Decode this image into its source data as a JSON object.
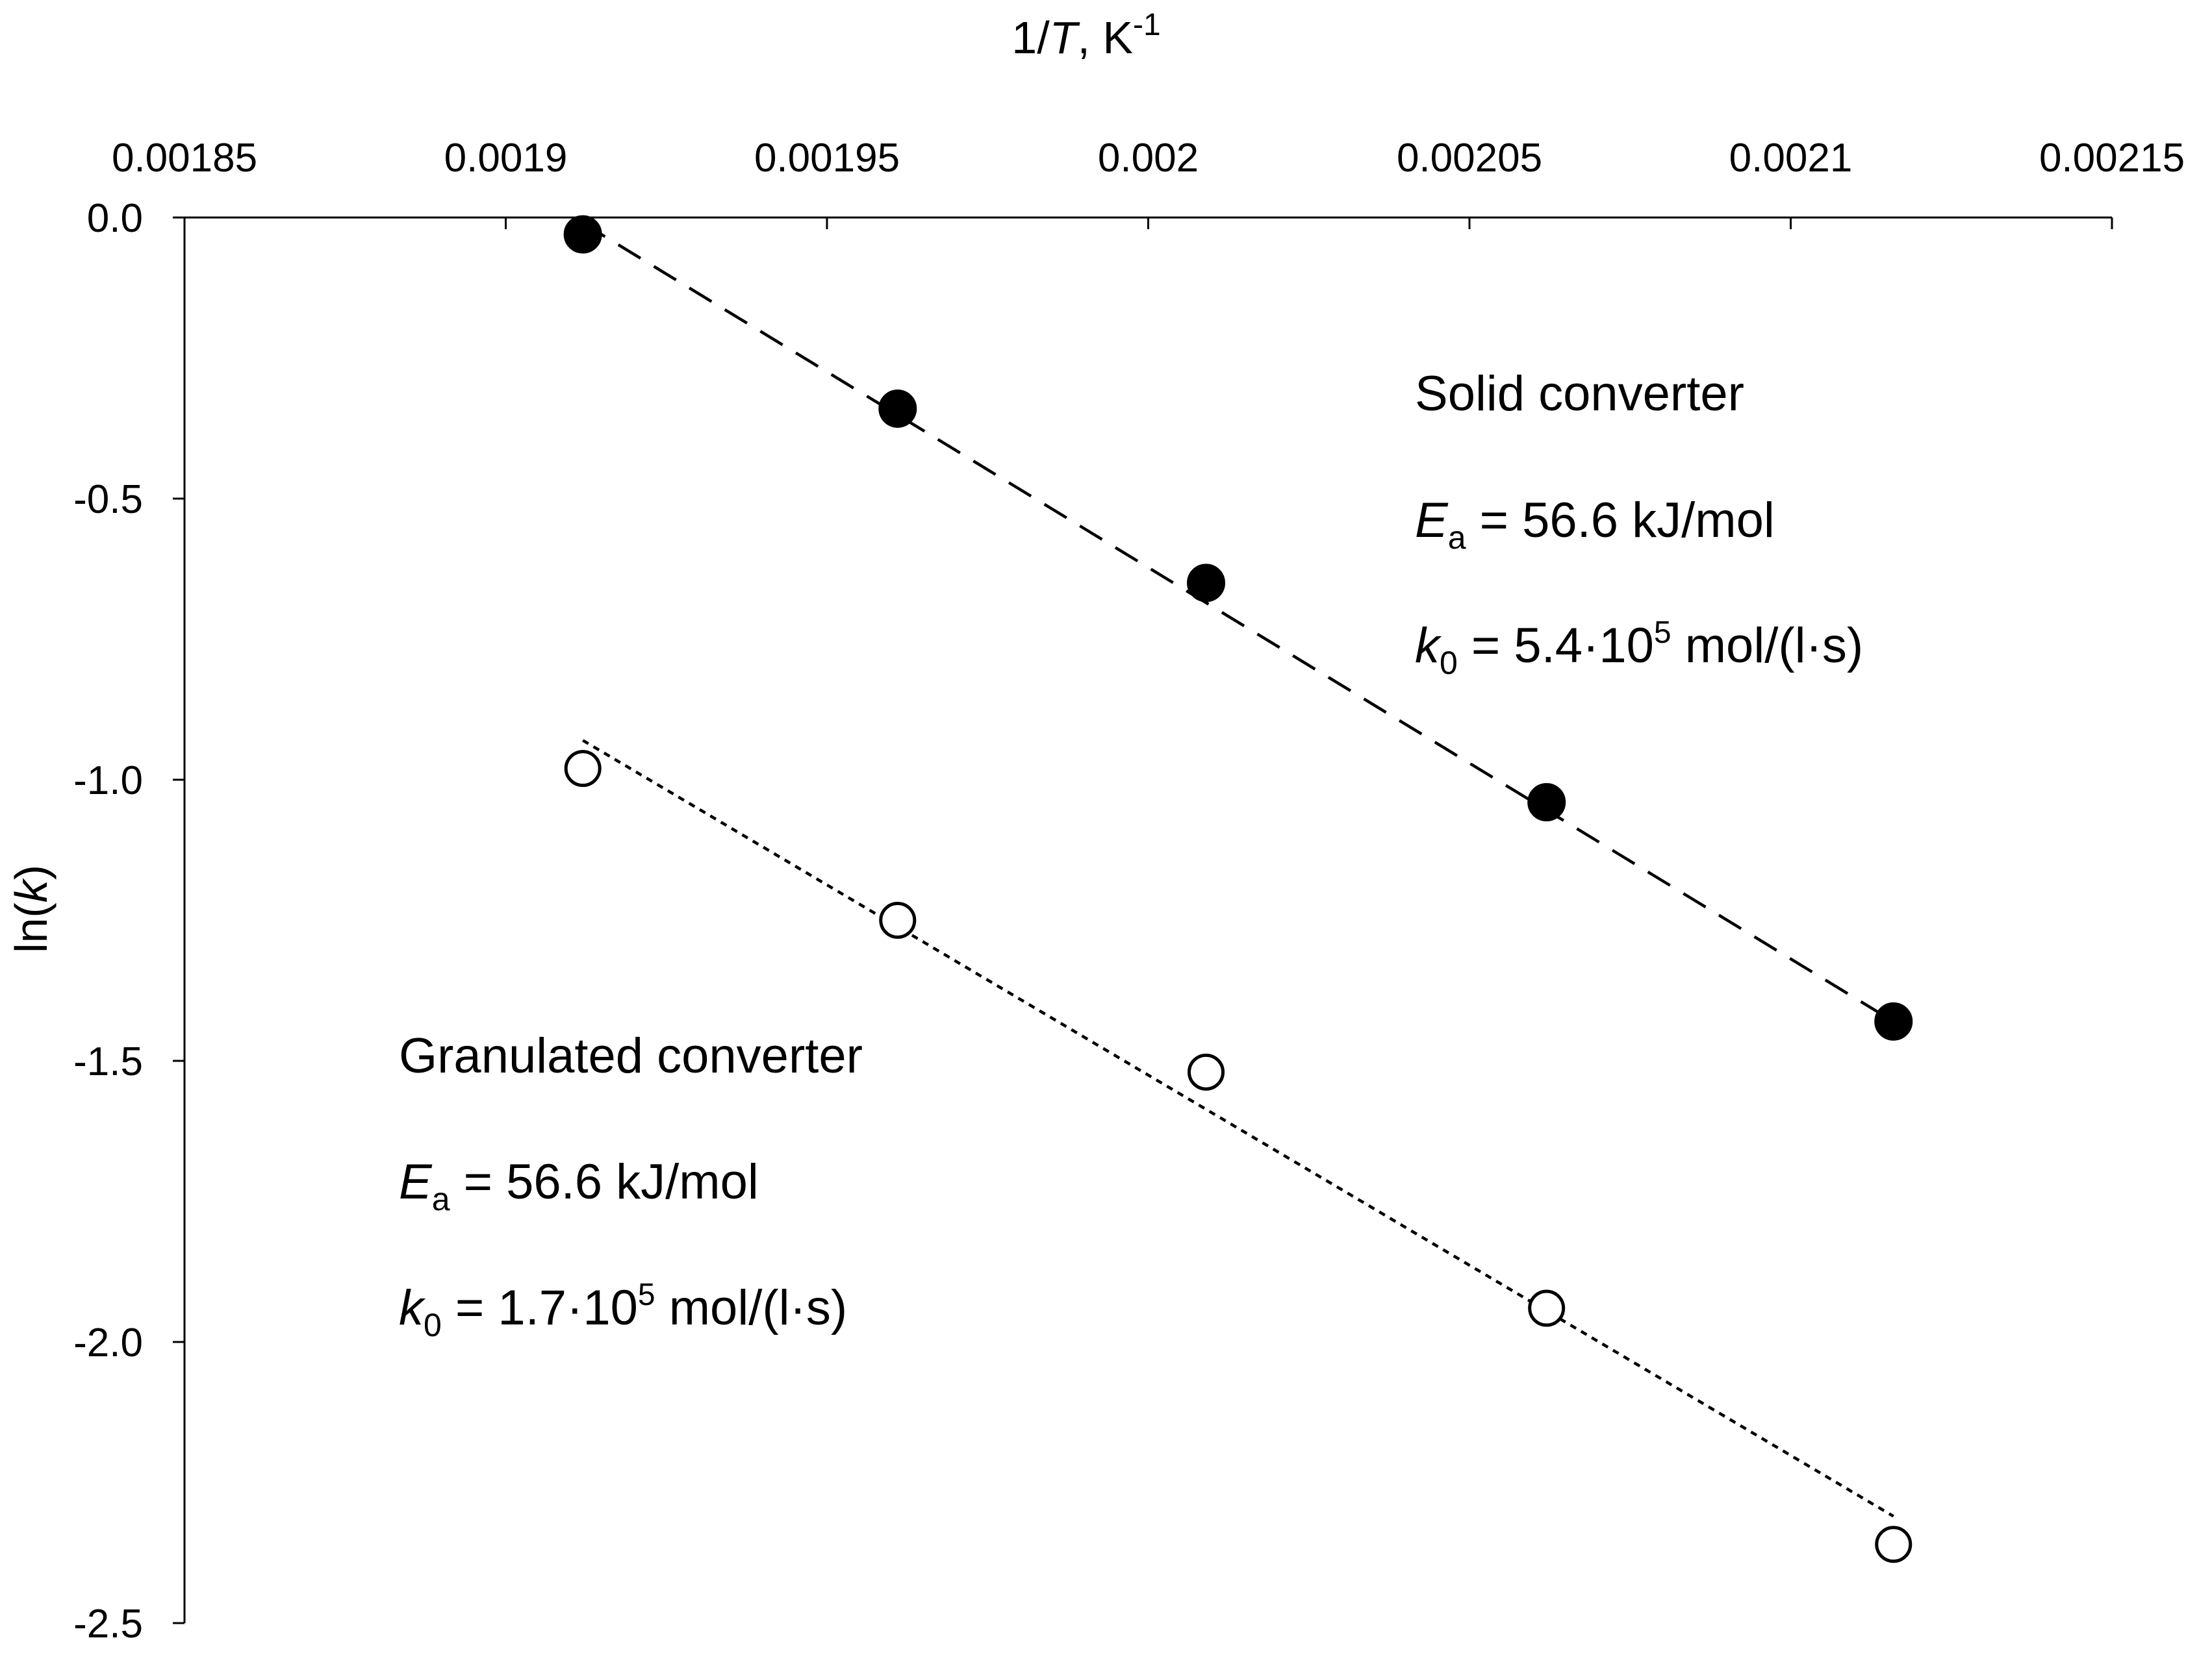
{
  "chart_data": {
    "type": "scatter",
    "title": "",
    "xlabel": {
      "pre": "1/",
      "var": "T",
      "post": ", K",
      "sup": "-1"
    },
    "ylabel": {
      "pre": "ln(",
      "var": "k",
      "post": ")"
    },
    "xlim": [
      0.00185,
      0.00215
    ],
    "ylim": [
      -2.5,
      0.0
    ],
    "x_axis_position": "top",
    "x_ticks": [
      "0.00185",
      "0.0019",
      "0.00195",
      "0.002",
      "0.00205",
      "0.0021",
      "0.00215"
    ],
    "y_ticks": [
      "0.0",
      "-0.5",
      "-1.0",
      "-1.5",
      "-2.0",
      "-2.5"
    ],
    "grid": false,
    "legend": "none",
    "series": [
      {
        "marker": "filled-circle",
        "color": "#000000",
        "trendline": "dashed",
        "trend_x": [
          0.001912,
          0.002116
        ],
        "trend_y": [
          -0.01,
          -1.43
        ],
        "x": [
          0.001912,
          0.001961,
          0.002009,
          0.002062,
          0.002116
        ],
        "y": [
          -0.03,
          -0.34,
          -0.65,
          -1.04,
          -1.43
        ]
      },
      {
        "marker": "open-circle",
        "color": "#000000",
        "trendline": "dotted",
        "trend_x": [
          0.001912,
          0.002116
        ],
        "trend_y": [
          -0.93,
          -2.31
        ],
        "x": [
          0.001912,
          0.001961,
          0.002009,
          0.002062,
          0.002116
        ],
        "y": [
          -0.98,
          -1.25,
          -1.52,
          -1.94,
          -2.36
        ]
      }
    ],
    "annotations": [
      {
        "title": "Solid converter",
        "ea": {
          "var": "E",
          "sub": "a",
          "text": " = 56.6 kJ/mol"
        },
        "k0": {
          "var": "k",
          "sub": "0",
          "pre": " = 5.4·10",
          "sup": "5",
          "post": " mol/(l·s)"
        }
      },
      {
        "title": "Granulated converter",
        "ea": {
          "var": "E",
          "sub": "a",
          "text": " = 56.6 kJ/mol"
        },
        "k0": {
          "var": "k",
          "sub": "0",
          "pre": " = 1.7·10",
          "sup": "5",
          "post": " mol/(l·s)"
        }
      }
    ]
  }
}
